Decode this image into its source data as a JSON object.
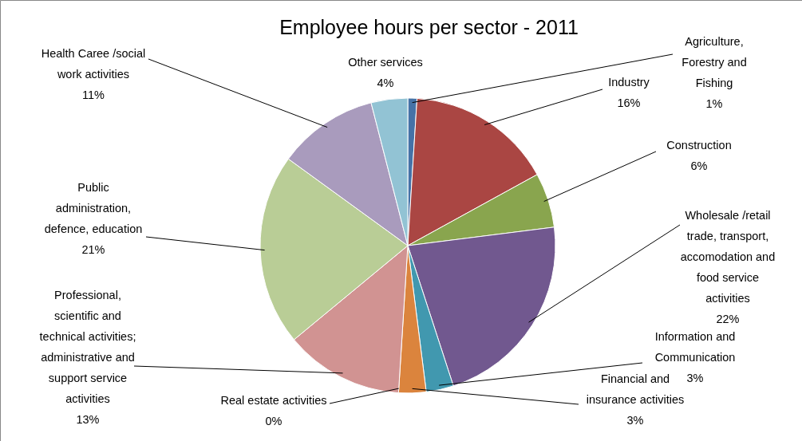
{
  "chart_data": {
    "type": "pie",
    "title": "Employee hours per sector - 2011",
    "categories": [
      "Agriculture, Forestry and Fishing",
      "Industry",
      "Construction",
      "Wholesale /retail trade, transport, accomodation and food service activities",
      "Information and Communication",
      "Financial and insurance activities",
      "Real estate activities",
      "Professional, scientific and technical activities; administrative and support service activities",
      "Public administration, defence, education",
      "Health Caree /social work activities",
      "Other services"
    ],
    "values": [
      1,
      16,
      6,
      22,
      3,
      3,
      0,
      13,
      21,
      11,
      4
    ],
    "value_labels": [
      "1%",
      "16%",
      "6%",
      "22%",
      "3%",
      "3%",
      "0%",
      "13%",
      "21%",
      "11%",
      "4%"
    ],
    "colors": [
      "#4572a7",
      "#aa4643",
      "#89a54e",
      "#71588f",
      "#4198af",
      "#db843d",
      "#93a9cf",
      "#d19392",
      "#b9cd96",
      "#a99bbd",
      "#92c3d4"
    ]
  }
}
